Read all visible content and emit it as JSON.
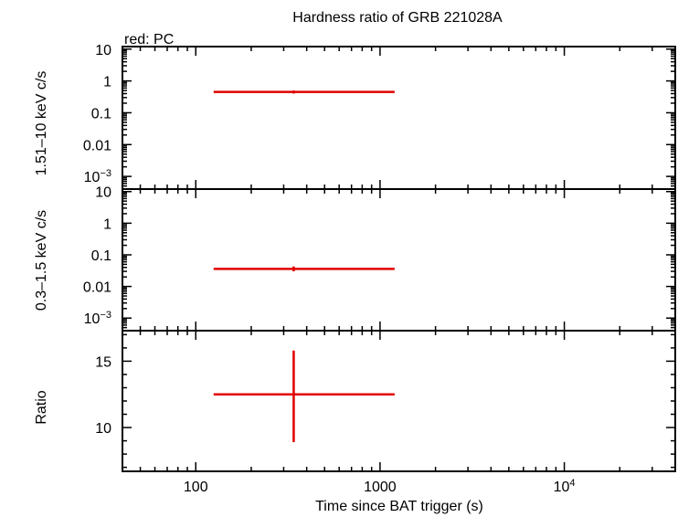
{
  "chart_data": {
    "type": "scatter",
    "title": "Hardness ratio of GRB 221028A",
    "subtitle": "red: PC",
    "xlabel": "Time since BAT trigger (s)",
    "xscale": "log",
    "xlim": [
      40,
      40000
    ],
    "x_ticklabels": [
      {
        "value": 100,
        "text": "100"
      },
      {
        "value": 1000,
        "text": "1000"
      },
      {
        "value": 10000,
        "base": "10",
        "exp": "4"
      }
    ],
    "panels": [
      {
        "id": "hard",
        "ylabel": "1.51–10 keV c/s",
        "yscale": "log",
        "ylim": [
          0.0004,
          12
        ],
        "y_ticklabels": [
          {
            "value": 10,
            "text": "10"
          },
          {
            "value": 1,
            "text": "1"
          },
          {
            "value": 0.1,
            "text": "0.1"
          },
          {
            "value": 0.01,
            "text": "0.01"
          },
          {
            "value": 0.001,
            "base": "10",
            "exp": "−3"
          }
        ],
        "series": [
          {
            "color": "#e00000",
            "points": [
              {
                "x": 340,
                "xerr": [
                  125,
                  1200
                ],
                "y": 0.45,
                "yerr": [
                  0.4,
                  0.5
                ]
              }
            ]
          }
        ]
      },
      {
        "id": "soft",
        "ylabel": "0.3–1.5 keV c/s",
        "yscale": "log",
        "ylim": [
          0.0004,
          12
        ],
        "y_ticklabels": [
          {
            "value": 10,
            "text": "10"
          },
          {
            "value": 1,
            "text": "1"
          },
          {
            "value": 0.1,
            "text": "0.1"
          },
          {
            "value": 0.01,
            "text": "0.01"
          },
          {
            "value": 0.001,
            "base": "10",
            "exp": "−3"
          }
        ],
        "series": [
          {
            "color": "#e00000",
            "points": [
              {
                "x": 340,
                "xerr": [
                  125,
                  1200
                ],
                "y": 0.036,
                "yerr": [
                  0.03,
                  0.043
                ]
              }
            ]
          }
        ]
      },
      {
        "id": "ratio",
        "ylabel": "Ratio",
        "yscale": "linear",
        "ylim": [
          6.7,
          17.3
        ],
        "y_ticklabels": [
          {
            "value": 15,
            "text": "15"
          },
          {
            "value": 10,
            "text": "10"
          }
        ],
        "series": [
          {
            "color": "#e00000",
            "points": [
              {
                "x": 340,
                "xerr": [
                  125,
                  1200
                ],
                "y": 12.5,
                "yerr": [
                  8.9,
                  15.8
                ]
              }
            ]
          }
        ]
      }
    ]
  }
}
